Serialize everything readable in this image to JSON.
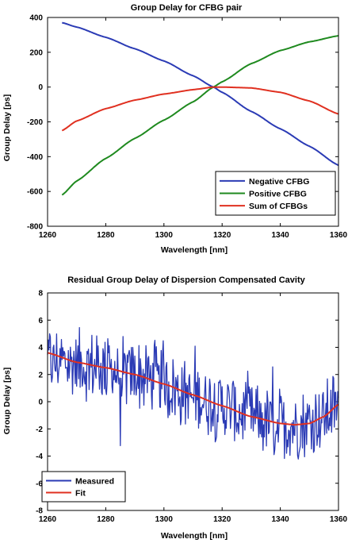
{
  "chart_data": [
    {
      "type": "line",
      "title": "Group Delay for CFBG pair",
      "xlabel": "Wavelength [nm]",
      "ylabel": "Group Delay [ps]",
      "xlim": [
        1260,
        1360
      ],
      "ylim": [
        -800,
        400
      ],
      "xticks": [
        1260,
        1280,
        1300,
        1320,
        1340,
        1360
      ],
      "yticks": [
        -800,
        -600,
        -400,
        -200,
        0,
        200,
        400
      ],
      "grid": false,
      "legend_position": "bottom-right",
      "x": [
        1265,
        1270,
        1280,
        1290,
        1300,
        1310,
        1317,
        1320,
        1330,
        1340,
        1350,
        1360
      ],
      "series": [
        {
          "name": "Negative CFBG",
          "color": "#2b3bb5",
          "values": [
            370,
            345,
            286,
            220,
            150,
            65,
            0,
            -30,
            -140,
            -240,
            -340,
            -450
          ]
        },
        {
          "name": "Positive CFBG",
          "color": "#1f8a1f",
          "values": [
            -620,
            -540,
            -410,
            -295,
            -190,
            -85,
            0,
            30,
            135,
            210,
            260,
            295
          ]
        },
        {
          "name": "Sum of CFBGs",
          "color": "#e03020",
          "values": [
            -250,
            -195,
            -124,
            -75,
            -40,
            -15,
            0,
            0,
            -5,
            -30,
            -80,
            -155
          ]
        }
      ]
    },
    {
      "type": "line",
      "title": "Residual Group Delay of Dispersion Compensated Cavity",
      "xlabel": "Wavelength [nm]",
      "ylabel": "Group Delay [ps]",
      "xlim": [
        1260,
        1360
      ],
      "ylim": [
        -8,
        8
      ],
      "xticks": [
        1260,
        1280,
        1300,
        1320,
        1340,
        1360
      ],
      "yticks": [
        -8,
        -6,
        -4,
        -2,
        0,
        2,
        4,
        6,
        8
      ],
      "grid": false,
      "legend_position": "bottom-left",
      "x": [
        1260,
        1270,
        1280,
        1290,
        1300,
        1310,
        1320,
        1330,
        1340,
        1345,
        1350,
        1355,
        1360
      ],
      "series": [
        {
          "name": "Measured",
          "color": "#2b3bb5",
          "values": [
            3.0,
            2.8,
            2.4,
            2.0,
            1.2,
            0.4,
            -0.4,
            -1.2,
            -1.7,
            -1.8,
            -1.6,
            -1.1,
            -0.2
          ],
          "noise_amplitude": 2.5
        },
        {
          "name": "Fit",
          "color": "#e03020",
          "values": [
            3.6,
            2.9,
            2.5,
            2.0,
            1.3,
            0.5,
            -0.3,
            -1.1,
            -1.6,
            -1.7,
            -1.6,
            -1.1,
            -0.2
          ]
        }
      ]
    }
  ]
}
